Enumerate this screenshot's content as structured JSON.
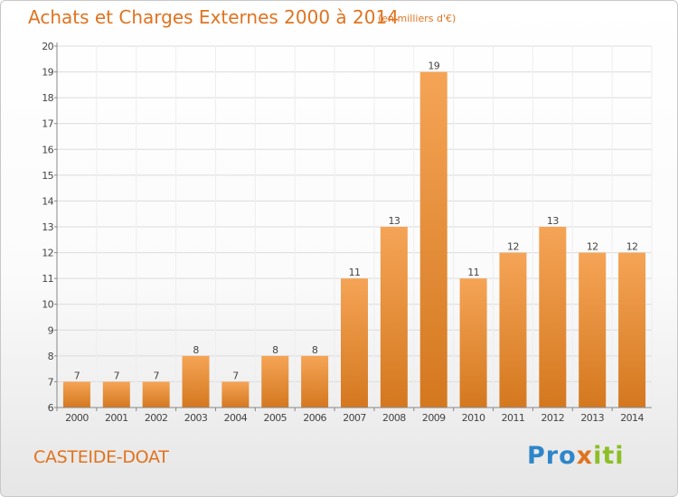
{
  "header": {
    "title": "Achats et Charges Externes 2000 à 2014",
    "subtitle": "(en milliers d'€)"
  },
  "footer": {
    "commune": "CASTEIDE-DOAT",
    "logo_text": "Proxiti"
  },
  "colors": {
    "accent": "#e0731f",
    "bar_light": "#f5a456",
    "bar_dark": "#d4781f"
  },
  "chart_data": {
    "type": "bar",
    "categories": [
      "2000",
      "2001",
      "2002",
      "2003",
      "2004",
      "2005",
      "2006",
      "2007",
      "2008",
      "2009",
      "2010",
      "2011",
      "2012",
      "2013",
      "2014"
    ],
    "values": [
      7,
      7,
      7,
      8,
      7,
      8,
      8,
      11,
      13,
      19,
      11,
      12,
      13,
      12,
      12
    ],
    "title": "Achats et Charges Externes 2000 à 2014",
    "subtitle": "(en milliers d'€)",
    "xlabel": "",
    "ylabel": "",
    "ylim": [
      6,
      20
    ],
    "yticks": [
      6,
      7,
      8,
      9,
      10,
      11,
      12,
      13,
      14,
      15,
      16,
      17,
      18,
      19,
      20
    ],
    "grid": true,
    "legend": "none"
  }
}
